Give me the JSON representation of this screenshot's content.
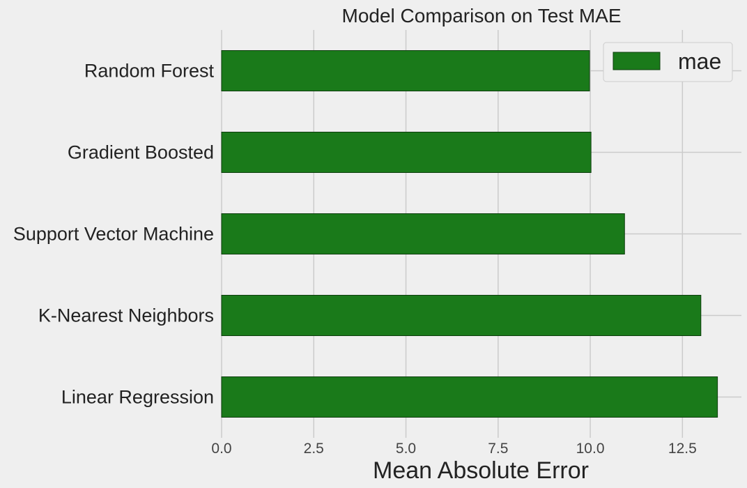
{
  "chart_data": {
    "type": "bar",
    "orientation": "horizontal",
    "title": "Model Comparison on Test MAE",
    "xlabel": "Mean Absolute Error",
    "ylabel": "",
    "categories": [
      "Random Forest",
      "Gradient Boosted",
      "Support Vector Machine",
      "K-Nearest Neighbors",
      "Linear Regression"
    ],
    "series": [
      {
        "name": "mae",
        "values": [
          9.98,
          10.02,
          10.93,
          13.0,
          13.45
        ]
      }
    ],
    "xlim": [
      0,
      14.1
    ],
    "xticks": [
      0.0,
      2.5,
      5.0,
      7.5,
      10.0,
      12.5
    ],
    "xtick_labels": [
      "0.0",
      "2.5",
      "5.0",
      "7.5",
      "10.0",
      "12.5"
    ],
    "grid": true,
    "legend_position": "top-right",
    "colors": {
      "bar": "#1a7a1a",
      "bar_edge": "#0d3d0d",
      "background": "#efefef",
      "grid": "#cbcbcb"
    }
  }
}
